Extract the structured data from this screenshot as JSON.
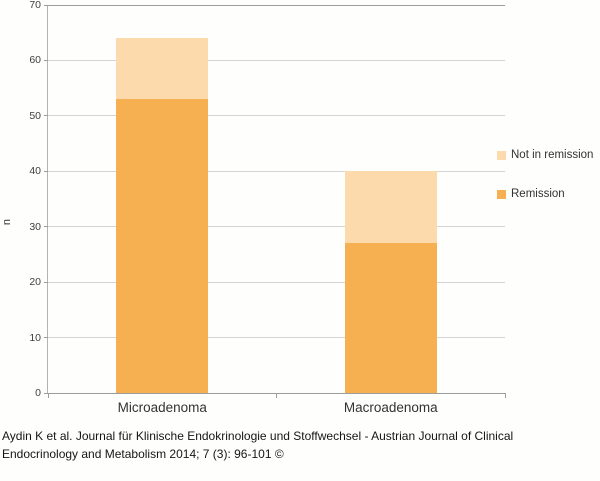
{
  "chart_data": {
    "type": "bar",
    "stacked": true,
    "title": "",
    "categories": [
      "Microadenoma",
      "Macroadenoma"
    ],
    "series": [
      {
        "name": "Remission",
        "values": [
          53,
          27
        ],
        "color": "#F6B052"
      },
      {
        "name": "Not in remission",
        "values": [
          11,
          13
        ],
        "color": "#FCDAAC"
      }
    ],
    "totals": [
      64,
      40
    ],
    "xlabel": "",
    "ylabel": "n",
    "ylim": [
      0,
      70
    ],
    "ytick_step": 10,
    "yticks": [
      0,
      10,
      20,
      30,
      40,
      50,
      60,
      70
    ],
    "grid": true,
    "legend_position": "right",
    "legend": [
      {
        "label": "Not in remission",
        "color": "#FCDAAC"
      },
      {
        "label": "Remission",
        "color": "#F6B052"
      }
    ],
    "colors": {
      "gridline": "#d4d4d4",
      "top_gridline": "#9c9c9c",
      "axis": "#9c9c9c"
    }
  },
  "caption": {
    "line1": "Aydin K et al. Journal für Klinische Endokrinologie und Stoffwechsel - Austrian Journal of Clinical",
    "line2": "Endocrinology and Metabolism 2014; 7 (3): 96-101 ©"
  }
}
